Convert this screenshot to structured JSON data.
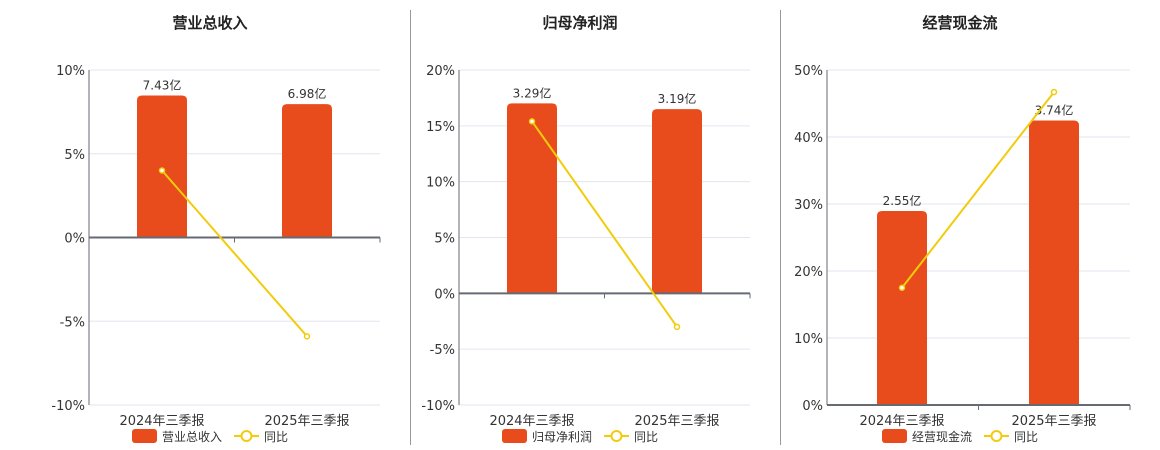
{
  "colors": {
    "bar": "#e84c1c",
    "line": "#f2cc0c",
    "grid": "#e3e6ef",
    "axis": "#666a73"
  },
  "chart_data": [
    {
      "type": "bar+line",
      "title": "营业总收入",
      "categories": [
        "2024年三季报",
        "2025年三季报"
      ],
      "yticks": [
        "10%",
        "5%",
        "0%",
        "-5%",
        "-10%"
      ],
      "ylim": [
        -10,
        10
      ],
      "series": [
        {
          "name": "营业总收入",
          "type": "bar",
          "values": [
            7.43,
            6.98
          ],
          "labels": [
            "7.43亿",
            "6.98亿"
          ]
        },
        {
          "name": "同比",
          "type": "line",
          "values": [
            4.0,
            -5.9
          ]
        }
      ]
    },
    {
      "type": "bar+line",
      "title": "归母净利润",
      "categories": [
        "2024年三季报",
        "2025年三季报"
      ],
      "yticks": [
        "20%",
        "15%",
        "10%",
        "5%",
        "0%",
        "-5%",
        "-10%"
      ],
      "ylim": [
        -10,
        20
      ],
      "series": [
        {
          "name": "归母净利润",
          "type": "bar",
          "values": [
            3.29,
            3.19
          ],
          "labels": [
            "3.29亿",
            "3.19亿"
          ]
        },
        {
          "name": "同比",
          "type": "line",
          "values": [
            15.4,
            -3.0
          ]
        }
      ]
    },
    {
      "type": "bar+line",
      "title": "经营现金流",
      "categories": [
        "2024年三季报",
        "2025年三季报"
      ],
      "yticks": [
        "50%",
        "40%",
        "30%",
        "20%",
        "10%",
        "0%"
      ],
      "ylim": [
        0,
        50
      ],
      "series": [
        {
          "name": "经营现金流",
          "type": "bar",
          "values": [
            2.55,
            3.74
          ],
          "labels": [
            "2.55亿",
            "3.74亿"
          ]
        },
        {
          "name": "同比",
          "type": "line",
          "values": [
            17.5,
            46.7
          ]
        }
      ]
    }
  ]
}
